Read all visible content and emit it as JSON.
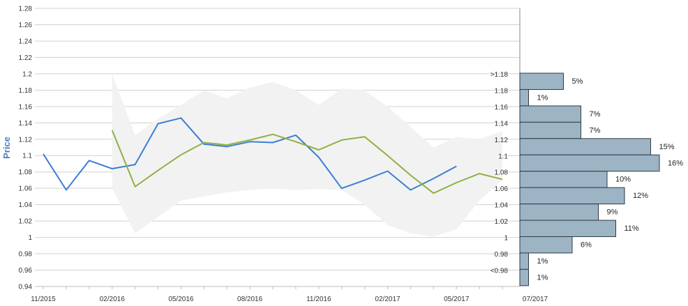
{
  "chart_data": {
    "type": "line",
    "ylabel": "Price",
    "ylim": [
      0.94,
      1.28
    ],
    "yticks": [
      "0.94",
      "0.96",
      "0.98",
      "1",
      "1.02",
      "1.04",
      "1.06",
      "1.08",
      "1.1",
      "1.12",
      "1.14",
      "1.16",
      "1.18",
      "1.2",
      "1.22",
      "1.24",
      "1.26",
      "1.28"
    ],
    "xticks": [
      "11/2015",
      "02/2016",
      "05/2016",
      "08/2016",
      "11/2016",
      "02/2017",
      "05/2017",
      "07/2017"
    ],
    "grid": true,
    "series": [
      {
        "color": "#3a7fd5",
        "x": [
          "11/2015",
          "12/2015",
          "01/2016",
          "02/2016",
          "03/2016",
          "04/2016",
          "05/2016",
          "06/2016",
          "07/2016",
          "08/2016",
          "09/2016",
          "10/2016",
          "11/2016",
          "12/2016",
          "01/2017",
          "02/2017",
          "03/2017",
          "04/2017",
          "05/2017"
        ],
        "values": [
          1.102,
          1.058,
          1.094,
          1.084,
          1.089,
          1.139,
          1.146,
          1.114,
          1.111,
          1.117,
          1.116,
          1.125,
          1.098,
          1.06,
          1.07,
          1.081,
          1.058,
          1.072,
          1.087
        ]
      },
      {
        "color": "#8db244",
        "x": [
          "02/2016",
          "03/2016",
          "04/2016",
          "05/2016",
          "06/2016",
          "07/2016",
          "08/2016",
          "09/2016",
          "10/2016",
          "11/2016",
          "12/2016",
          "01/2017",
          "02/2017",
          "03/2017",
          "04/2017",
          "05/2017",
          "06/2017",
          "07/2017"
        ],
        "values": [
          1.131,
          1.062,
          1.082,
          1.101,
          1.116,
          1.113,
          1.119,
          1.126,
          1.117,
          1.107,
          1.119,
          1.123,
          1.1,
          1.076,
          1.054,
          1.067,
          1.078,
          1.071
        ]
      }
    ],
    "band": {
      "color": "#f2f2f2",
      "x": [
        "02/2016",
        "03/2016",
        "04/2016",
        "05/2016",
        "06/2016",
        "07/2016",
        "08/2016",
        "09/2016",
        "10/2016",
        "11/2016",
        "12/2016",
        "01/2017",
        "02/2017",
        "03/2017",
        "04/2017",
        "05/2017",
        "06/2017",
        "07/2017"
      ],
      "upper": [
        1.2,
        1.125,
        1.145,
        1.162,
        1.18,
        1.17,
        1.183,
        1.19,
        1.18,
        1.162,
        1.182,
        1.18,
        1.16,
        1.135,
        1.11,
        1.123,
        1.12,
        1.13
      ],
      "lower": [
        1.06,
        1.005,
        1.025,
        1.045,
        1.05,
        1.055,
        1.058,
        1.06,
        1.058,
        1.059,
        1.058,
        1.04,
        1.015,
        1.005,
        1.001,
        1.01,
        1.045,
        1.07
      ]
    },
    "histogram": {
      "color": "#9db4c5",
      "bins": [
        {
          "label": ">1.18",
          "value": 5,
          "text": "5%"
        },
        {
          "label": "1.18",
          "value": 1,
          "text": "1%"
        },
        {
          "label": "1.16",
          "value": 7,
          "text": "7%"
        },
        {
          "label": "1.14",
          "value": 7,
          "text": "7%"
        },
        {
          "label": "1.12",
          "value": 15,
          "text": "15%"
        },
        {
          "label": "1.1",
          "value": 16,
          "text": "16%"
        },
        {
          "label": "1.08",
          "value": 10,
          "text": "10%"
        },
        {
          "label": "1.06",
          "value": 12,
          "text": "12%"
        },
        {
          "label": "1.04",
          "value": 9,
          "text": "9%"
        },
        {
          "label": "1.02",
          "value": 11,
          "text": "11%"
        },
        {
          "label": "1",
          "value": 6,
          "text": "6%"
        },
        {
          "label": "0.98",
          "value": 1,
          "text": "1%"
        },
        {
          "label": "<0.98",
          "value": 1,
          "text": "1%"
        }
      ]
    }
  }
}
